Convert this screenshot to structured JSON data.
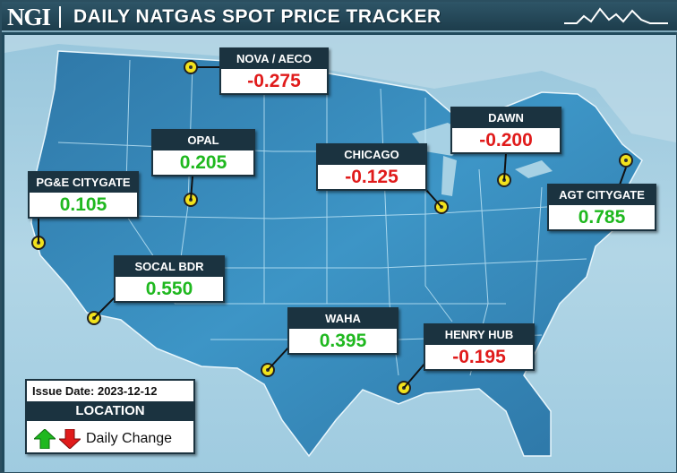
{
  "header": {
    "logo": "NGI",
    "title": "DAILY NATGAS SPOT PRICE TRACKER",
    "spark_icon": "mountain-sparkline-icon"
  },
  "locations": [
    {
      "name": "NOVA / AECO",
      "value": "-0.275",
      "direction": "negative"
    },
    {
      "name": "OPAL",
      "value": "0.205",
      "direction": "positive"
    },
    {
      "name": "PG&E CITYGATE",
      "value": "0.105",
      "direction": "positive"
    },
    {
      "name": "CHICAGO",
      "value": "-0.125",
      "direction": "negative"
    },
    {
      "name": "DAWN",
      "value": "-0.200",
      "direction": "negative"
    },
    {
      "name": "AGT CITYGATE",
      "value": "0.785",
      "direction": "positive"
    },
    {
      "name": "SOCAL BDR",
      "value": "0.550",
      "direction": "positive"
    },
    {
      "name": "WAHA",
      "value": "0.395",
      "direction": "positive"
    },
    {
      "name": "HENRY HUB",
      "value": "-0.195",
      "direction": "negative"
    }
  ],
  "legend": {
    "issue_date": "Issue Date: 2023-12-12",
    "location_label": "LOCATION",
    "change_label": "Daily Change",
    "up_icon": "green-up-arrow-icon",
    "down_icon": "red-down-arrow-icon"
  },
  "colors": {
    "positive": "#1fb81f",
    "negative": "#e01b1b",
    "marker": "#f2e21c",
    "label_bg": "#1b3340",
    "land": "#3a8fc0"
  }
}
